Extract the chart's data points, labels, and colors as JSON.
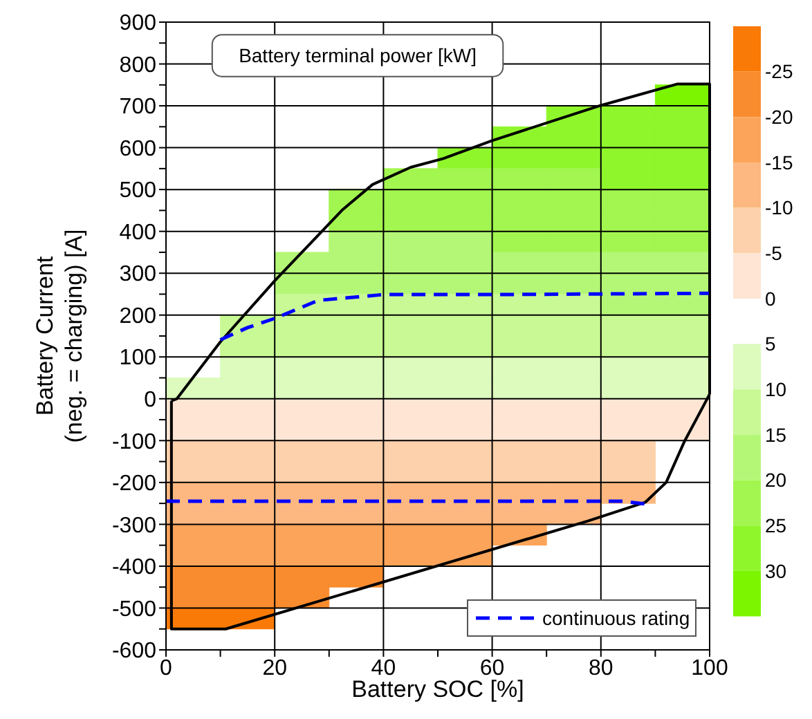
{
  "chart_data": {
    "type": "scatter",
    "title": "Battery terminal power [kW]",
    "xlabel": "Battery SOC [%]",
    "ylabel": "Battery Current\n(neg. = charging) [A]",
    "xlim": [
      0,
      100
    ],
    "ylim": [
      -600,
      900
    ],
    "xticks": [
      0,
      {
        "value": 10,
        "label": null
      },
      20,
      {
        "value": 30,
        "label": null
      },
      40,
      {
        "value": 50,
        "label": null
      },
      60,
      {
        "value": 70,
        "label": null
      },
      80,
      {
        "value": 90,
        "label": null
      },
      100
    ],
    "yticks": [
      -600,
      {
        "value": -550,
        "label": null
      },
      -500,
      {
        "value": -450,
        "label": null
      },
      -400,
      {
        "value": -350,
        "label": null
      },
      -300,
      {
        "value": -250,
        "label": null
      },
      -200,
      {
        "value": -150,
        "label": null
      },
      -100,
      {
        "value": -50,
        "label": null
      },
      0,
      {
        "value": 50,
        "label": null
      },
      100,
      {
        "value": 150,
        "label": null
      },
      200,
      {
        "value": 250,
        "label": null
      },
      300,
      {
        "value": 350,
        "label": null
      },
      400,
      {
        "value": 450,
        "label": null
      },
      500,
      {
        "value": 550,
        "label": null
      },
      600,
      {
        "value": 650,
        "label": null
      },
      700,
      {
        "value": 750,
        "label": null
      },
      800,
      {
        "value": 850,
        "label": null
      },
      900
    ],
    "grid": true,
    "legend": "bottom right",
    "clim": [
      -30,
      35
    ],
    "cticks": [
      -25,
      -20,
      -15,
      -10,
      -5,
      0,
      5,
      10,
      15,
      20,
      25,
      30
    ],
    "series": [
      {
        "type": "scatter",
        "marker": "square",
        "colors": [
          "#7cf500",
          "#8ff62c",
          "#8ff62c",
          "#8ff62c",
          "#8ff62c",
          "#8ff62c",
          "#8ff62c",
          "#8ff62c",
          "#8ff62c",
          "#8ff62c",
          "#8ff62c",
          "#8ff62c",
          "#8ff62c",
          "#a2f64f",
          "#a2f64f",
          "#a2f64f",
          "#a2f64f",
          "#8ff62c",
          "#8ff62c",
          "#a2f64f",
          "#a2f64f",
          "#a2f64f",
          "#a2f64f",
          "#a2f64f",
          "#a2f64f",
          "#a2f64f",
          "#a2f64f",
          "#a2f64f",
          "#a2f64f",
          "#a2f64f",
          "#a2f64f",
          "#a2f64f",
          "#a2f64f",
          "#b4f776",
          "#b4f776",
          "#b4f776",
          "#a2f64f",
          "#a2f64f",
          "#a2f64f",
          "#a2f64f",
          "#b4f776",
          "#b4f776",
          "#b4f776",
          "#b4f776",
          "#b4f776",
          "#b4f776",
          "#b4f776",
          "#b4f776",
          "#b4f776",
          "#b4f776",
          "#b4f776",
          "#b4f776",
          "#b4f776",
          "#b4f776",
          "#b4f776",
          "#b4f776",
          "#c8f994",
          "#c8f994",
          "#c8f994",
          "#c8f994",
          "#c8f994",
          "#c8f994",
          "#b4f776",
          "#b4f776",
          "#c8f994",
          "#c8f994",
          "#c8f994",
          "#c8f994",
          "#c8f994",
          "#c8f994",
          "#c8f994",
          "#c8f994",
          "#c8f994",
          "#c8f994",
          "#c8f994",
          "#c8f994",
          "#c8f994",
          "#c8f994",
          "#c8f994",
          "#c8f994",
          "#c8f994",
          "#c8f994",
          "#dcfbbd",
          "#dcfbbd",
          "#dcfbbd",
          "#dcfbbd",
          "#dcfbbd",
          "#dcfbbd",
          "#dcfbbd",
          "#dcfbbd",
          "#dcfbbd",
          "#dcfbbd",
          "#dcfbbd",
          "#dcfbbd",
          "#dcfbbd",
          "#dcfbbd",
          "#dcfbbd",
          "#dcfbbd",
          "#dcfbbd",
          "#dcfbbd",
          "#dcfbbd",
          "#fee5d4",
          "#fee5d4",
          "#fee5d4",
          "#fee5d4",
          "#fee5d4",
          "#fee5d4",
          "#fee5d4",
          "#fee5d4",
          "#fee5d4",
          "#fee5d4",
          "#fee5d4",
          "#fee5d4",
          "#fee5d4",
          "#fee5d4",
          "#fee5d4",
          "#fee5d4",
          "#fee5d4",
          "#fee5d4",
          "#fee5d4",
          "#fee5d4",
          "#fdd1ac",
          "#fdd1ac",
          "#fdd1ac",
          "#fdd1ac",
          "#fdd1ac",
          "#fdd1ac",
          "#fdd1ac",
          "#fdd1ac",
          "#fdd1ac",
          "#fdd1ac",
          "#fdd1ac",
          "#fdd1ac",
          "#fdd1ac",
          "#fdd1ac",
          "#fdd1ac",
          "#fdd1ac",
          "#fdd1ac",
          "#fdd1ac",
          "#fcb880",
          "#fcb880",
          "#fcb880",
          "#fcb880",
          "#fcb880",
          "#fcb880",
          "#fcb880",
          "#fcb880",
          "#fcb880",
          "#fcb880",
          "#fcb880",
          "#fcb880",
          "#fcb880",
          "#fcb880",
          "#fcb880",
          "#fcb880",
          "#fcb880",
          "#fba45a",
          "#fba45a",
          "#fba45a",
          "#fba45a",
          "#fba45a",
          "#fba45a",
          "#fba45a",
          "#fba45a",
          "#fba45a",
          "#fba45a",
          "#fba45a",
          "#fba45a",
          "#fba45a",
          "#f98c2e",
          "#f98c2e",
          "#f98c2e",
          "#f98c2e",
          "#f98c2e",
          "#f98c2e",
          "#f98c2e",
          "#f97a07",
          "#f97a07"
        ],
        "x": [
          95,
          75,
          85,
          95,
          65,
          75,
          85,
          95,
          55,
          65,
          75,
          85,
          95,
          45,
          55,
          65,
          75,
          85,
          95,
          35,
          45,
          55,
          65,
          75,
          85,
          95,
          35,
          45,
          55,
          65,
          75,
          85,
          95,
          35,
          45,
          55,
          65,
          75,
          85,
          95,
          25,
          35,
          45,
          55,
          65,
          75,
          85,
          95,
          25,
          35,
          45,
          55,
          65,
          75,
          85,
          95,
          25,
          35,
          45,
          55,
          65,
          75,
          85,
          95,
          15,
          25,
          35,
          45,
          55,
          65,
          75,
          85,
          95,
          15,
          25,
          35,
          45,
          55,
          65,
          75,
          85,
          95,
          15,
          25,
          35,
          45,
          55,
          65,
          75,
          85,
          95,
          5,
          15,
          25,
          35,
          45,
          55,
          65,
          75,
          85,
          95,
          5,
          15,
          25,
          35,
          45,
          55,
          65,
          75,
          85,
          95,
          5,
          15,
          25,
          35,
          45,
          55,
          65,
          75,
          85,
          95,
          5,
          15,
          25,
          35,
          45,
          55,
          65,
          75,
          85,
          5,
          15,
          25,
          35,
          45,
          55,
          65,
          75,
          85,
          5,
          15,
          25,
          35,
          45,
          55,
          65,
          75,
          85,
          5,
          15,
          25,
          35,
          45,
          55,
          65,
          75,
          5,
          15,
          25,
          35,
          45,
          55,
          65,
          5,
          15,
          25,
          35,
          45,
          55,
          5,
          15,
          25,
          35,
          5,
          15,
          25,
          5,
          15
        ],
        "values": [
          725,
          675,
          675,
          675,
          625,
          625,
          625,
          625,
          575,
          575,
          575,
          575,
          575,
          525,
          525,
          525,
          525,
          525,
          525,
          475,
          475,
          475,
          475,
          475,
          475,
          475,
          425,
          425,
          425,
          425,
          425,
          425,
          425,
          375,
          375,
          375,
          375,
          375,
          375,
          375,
          325,
          325,
          325,
          325,
          325,
          325,
          325,
          325,
          275,
          275,
          275,
          275,
          275,
          275,
          275,
          275,
          225,
          225,
          225,
          225,
          225,
          225,
          225,
          225,
          175,
          175,
          175,
          175,
          175,
          175,
          175,
          175,
          175,
          125,
          125,
          125,
          125,
          125,
          125,
          125,
          125,
          125,
          75,
          75,
          75,
          75,
          75,
          75,
          75,
          75,
          75,
          25,
          25,
          25,
          25,
          25,
          25,
          25,
          25,
          25,
          25,
          -25,
          -25,
          -25,
          -25,
          -25,
          -25,
          -25,
          -25,
          -25,
          -25,
          -75,
          -75,
          -75,
          -75,
          -75,
          -75,
          -75,
          -75,
          -75,
          -75,
          -125,
          -125,
          -125,
          -125,
          -125,
          -125,
          -125,
          -125,
          -125,
          -175,
          -175,
          -175,
          -175,
          -175,
          -175,
          -175,
          -175,
          -175,
          -225,
          -225,
          -225,
          -225,
          -225,
          -225,
          -225,
          -225,
          -225,
          -275,
          -275,
          -275,
          -275,
          -275,
          -275,
          -275,
          -275,
          -325,
          -325,
          -325,
          -325,
          -325,
          -325,
          -325,
          -375,
          -375,
          -375,
          -375,
          -375,
          -375,
          -425,
          -425,
          -425,
          -425,
          -475,
          -475,
          -475,
          -525,
          -525
        ],
        "cvalues": [
          30,
          28,
          29,
          29,
          27,
          27,
          27,
          28,
          25,
          25,
          26,
          26,
          26,
          23,
          24,
          24,
          24,
          25,
          25,
          22,
          22,
          22,
          22,
          23,
          23,
          23,
          20,
          21,
          21,
          21,
          21,
          22,
          22,
          19,
          19,
          19,
          20,
          20,
          20,
          20,
          17,
          17,
          17,
          18,
          18,
          18,
          18,
          18,
          15,
          15,
          16,
          16,
          16,
          16,
          16,
          17,
          13,
          14,
          14,
          14,
          14,
          14,
          15,
          15,
          11,
          12,
          12,
          12,
          12,
          12,
          12,
          13,
          13,
          10,
          10,
          10,
          10,
          10,
          10,
          10,
          11,
          11,
          8,
          8,
          8,
          8,
          8,
          8,
          8,
          8,
          8,
          6,
          6,
          6,
          6,
          6,
          6,
          6,
          6,
          6,
          6,
          -1,
          -1,
          -1,
          -1,
          -1,
          -1,
          -1,
          -1,
          -1,
          -1,
          -3,
          -3,
          -3,
          -3,
          -3,
          -3,
          -3,
          -3,
          -3,
          -3,
          -6,
          -6,
          -6,
          -6,
          -6,
          -6,
          -6,
          -6,
          -6,
          -8,
          -8,
          -8,
          -8,
          -8,
          -8,
          -8,
          -8,
          -8,
          -11,
          -11,
          -11,
          -11,
          -11,
          -11,
          -11,
          -11,
          -11,
          -13,
          -13,
          -13,
          -13,
          -13,
          -13,
          -13,
          -13,
          -16,
          -16,
          -16,
          -16,
          -16,
          -16,
          -16,
          -19,
          -19,
          -19,
          -19,
          -19,
          -19,
          -21,
          -21,
          -21,
          -21,
          -24,
          -24,
          -24,
          -27,
          -27
        ]
      },
      {
        "type": "line",
        "color": "#000000",
        "line_style": "solid",
        "x": [
          1,
          2,
          10,
          20,
          32.5,
          38,
          45,
          51,
          60,
          80,
          94,
          100,
          100
        ],
        "values": [
          -5,
          0,
          136,
          282,
          452,
          512,
          553,
          574,
          617,
          701,
          752,
          752,
          11
        ]
      },
      {
        "type": "line",
        "color": "#000000",
        "line_style": "solid",
        "x": [
          1,
          1,
          11,
          77.6,
          88.2,
          92,
          95.4,
          100
        ],
        "values": [
          -5,
          -550,
          -550,
          -292,
          -247,
          -200,
          -101,
          11
        ]
      },
      {
        "type": "line",
        "name": "continuous rating",
        "color": "#0000ff",
        "line_style": "dashed",
        "x": [
          10,
          15,
          20,
          28,
          40,
          60,
          100,
          50,
          0,
          84,
          88
        ],
        "values": [
          141,
          170,
          192,
          235,
          249,
          249,
          252,
          null,
          -245,
          -245,
          -251
        ]
      }
    ]
  }
}
